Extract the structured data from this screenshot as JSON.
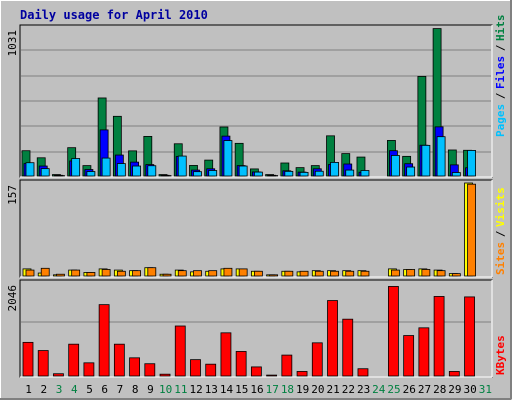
{
  "title": "Daily usage for April 2010",
  "colors": {
    "frame_bg": "#c0c0c0",
    "plot_bg": "#c0c0c0",
    "title": "#0000a0",
    "hits": "#008040",
    "files": "#0000ff",
    "pages": "#00c0ff",
    "visits": "#ffff00",
    "sites": "#ff8000",
    "kbytes": "#ff0000",
    "weekend_label": "#008040",
    "weekday_label": "#000000"
  },
  "chart_data": [
    {
      "type": "bar",
      "name": "hits-files-pages",
      "ymax_label": "1031",
      "ylim": [
        0,
        1031
      ],
      "legend": [
        "Pages",
        "Files",
        "Hits"
      ],
      "categories": [
        "1",
        "2",
        "3",
        "4",
        "5",
        "6",
        "7",
        "8",
        "9",
        "10",
        "11",
        "12",
        "13",
        "14",
        "15",
        "16",
        "17",
        "18",
        "19",
        "20",
        "21",
        "22",
        "23",
        "24",
        "25",
        "26",
        "27",
        "28",
        "29",
        "30",
        "31"
      ],
      "series": [
        {
          "name": "Hits",
          "values": [
            175,
            126,
            10,
            196,
            72,
            540,
            413,
            174,
            274,
            10,
            223,
            73,
            110,
            339,
            226,
            49,
            10,
            90,
            58,
            72,
            278,
            155,
            131,
            0,
            246,
            136,
            689,
            1020,
            180,
            178,
            0
          ]
        },
        {
          "name": "Files",
          "values": [
            86,
            69,
            5,
            104,
            45,
            319,
            145,
            96,
            79,
            5,
            135,
            41,
            50,
            276,
            72,
            28,
            5,
            36,
            27,
            50,
            80,
            83,
            26,
            0,
            175,
            85,
            213,
            340,
            77,
            57,
            0
          ]
        },
        {
          "name": "Pages",
          "values": [
            92,
            51,
            3,
            121,
            31,
            124,
            86,
            69,
            71,
            3,
            138,
            30,
            38,
            245,
            69,
            27,
            3,
            32,
            25,
            33,
            94,
            41,
            38,
            0,
            142,
            62,
            212,
            272,
            24,
            177,
            0
          ]
        }
      ]
    },
    {
      "type": "bar",
      "name": "visits-sites",
      "ymax_label": "157",
      "ylim": [
        0,
        157
      ],
      "legend": [
        "Sites",
        "Visits"
      ],
      "categories": [
        "1",
        "2",
        "3",
        "4",
        "5",
        "6",
        "7",
        "8",
        "9",
        "10",
        "11",
        "12",
        "13",
        "14",
        "15",
        "16",
        "17",
        "18",
        "19",
        "20",
        "21",
        "22",
        "23",
        "24",
        "25",
        "26",
        "27",
        "28",
        "29",
        "30",
        "31"
      ],
      "series": [
        {
          "name": "Visits",
          "values": [
            12,
            5,
            2,
            10,
            6,
            12,
            10,
            9,
            14,
            3,
            10,
            7,
            8,
            12,
            12,
            8,
            2,
            8,
            7,
            9,
            9,
            9,
            9,
            0,
            12,
            11,
            12,
            10,
            4,
            157,
            0
          ]
        },
        {
          "name": "Sites",
          "values": [
            10,
            13,
            3,
            10,
            6,
            11,
            8,
            9,
            14,
            3,
            9,
            9,
            9,
            13,
            12,
            8,
            2,
            8,
            8,
            8,
            8,
            8,
            8,
            0,
            10,
            11,
            11,
            9,
            4,
            155,
            0
          ]
        }
      ]
    },
    {
      "type": "bar",
      "name": "kbytes",
      "ymax_label": "2046",
      "ylim": [
        0,
        2046
      ],
      "legend": [
        "KBytes"
      ],
      "categories": [
        "1",
        "2",
        "3",
        "4",
        "5",
        "6",
        "7",
        "8",
        "9",
        "10",
        "11",
        "12",
        "13",
        "14",
        "15",
        "16",
        "17",
        "18",
        "19",
        "20",
        "21",
        "22",
        "23",
        "24",
        "25",
        "26",
        "27",
        "28",
        "29",
        "30",
        "31"
      ],
      "series": [
        {
          "name": "KBytes",
          "values": [
            740,
            560,
            50,
            700,
            290,
            1570,
            700,
            400,
            270,
            40,
            1100,
            360,
            260,
            950,
            540,
            200,
            20,
            460,
            100,
            730,
            1660,
            1250,
            160,
            0,
            1970,
            890,
            1060,
            1750,
            100,
            1740,
            0
          ]
        }
      ]
    }
  ],
  "x_labels": {
    "days": [
      "1",
      "2",
      "3",
      "4",
      "5",
      "6",
      "7",
      "8",
      "9",
      "10",
      "11",
      "12",
      "13",
      "14",
      "15",
      "16",
      "17",
      "18",
      "19",
      "20",
      "21",
      "22",
      "23",
      "24",
      "25",
      "26",
      "27",
      "28",
      "29",
      "30",
      "31"
    ],
    "weekend_days": [
      "3",
      "4",
      "10",
      "11",
      "17",
      "18",
      "24",
      "25",
      "31"
    ]
  }
}
